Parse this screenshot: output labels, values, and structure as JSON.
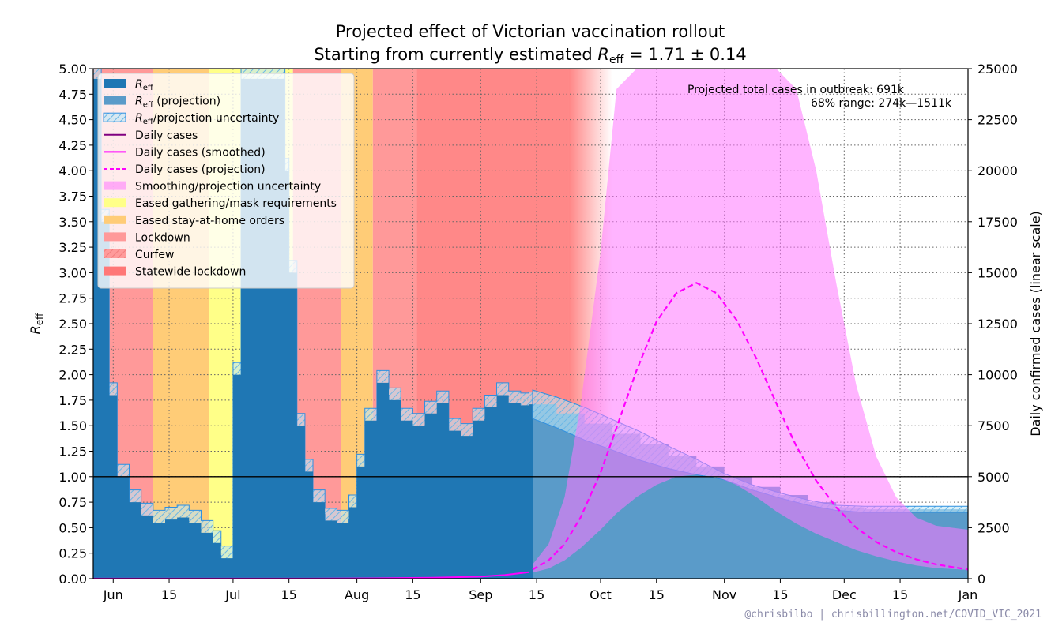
{
  "chart_data": {
    "type": "area",
    "title": "Projected effect of Victorian vaccination rollout",
    "subtitle_prefix": "Starting from currently estimated ",
    "subtitle_r": "R",
    "subtitle_r_sub": "eff",
    "subtitle_value": " = 1.71 ± 0.14",
    "ylabel_left": "R",
    "ylabel_left_sub": "eff",
    "ylabel_right": "Daily confirmed cases (linear scale)",
    "ylim_left": [
      0,
      5
    ],
    "ylim_right": [
      0,
      25000
    ],
    "xlim": [
      "2021-05-27",
      "2022-01-01"
    ],
    "grid": true,
    "legend_position": "upper-left",
    "left_ticks": [
      "0.00",
      "0.25",
      "0.50",
      "0.75",
      "1.00",
      "1.25",
      "1.50",
      "1.75",
      "2.00",
      "2.25",
      "2.50",
      "2.75",
      "3.00",
      "3.25",
      "3.50",
      "3.75",
      "4.00",
      "4.25",
      "4.50",
      "4.75",
      "5.00"
    ],
    "right_ticks": [
      "0",
      "2500",
      "5000",
      "7500",
      "10000",
      "12500",
      "15000",
      "17500",
      "20000",
      "22500",
      "25000"
    ],
    "x_ticks": [
      {
        "label": "Jun",
        "date": "2021-06-01"
      },
      {
        "label": "15",
        "date": "2021-06-15"
      },
      {
        "label": "Jul",
        "date": "2021-07-01"
      },
      {
        "label": "15",
        "date": "2021-07-15"
      },
      {
        "label": "Aug",
        "date": "2021-08-01"
      },
      {
        "label": "15",
        "date": "2021-08-15"
      },
      {
        "label": "Sep",
        "date": "2021-09-01"
      },
      {
        "label": "15",
        "date": "2021-09-15"
      },
      {
        "label": "Oct",
        "date": "2021-10-01"
      },
      {
        "label": "15",
        "date": "2021-10-15"
      },
      {
        "label": "Nov",
        "date": "2021-11-01"
      },
      {
        "label": "15",
        "date": "2021-11-15"
      },
      {
        "label": "Dec",
        "date": "2021-12-01"
      },
      {
        "label": "15",
        "date": "2021-12-15"
      },
      {
        "label": "Jan",
        "date": "2022-01-01"
      }
    ],
    "annotation_line1": "Projected total cases in outbreak:  691k",
    "annotation_line2": "68% range:  274k—1511k",
    "credit": "@chrisbilbo | chrisbillington.net/COVID_VIC_2021",
    "legend": [
      {
        "label": "R",
        "sub": "eff",
        "suffix": "",
        "style": "bar-dark"
      },
      {
        "label": "R",
        "sub": "eff",
        "suffix": " (projection)",
        "style": "bar-light"
      },
      {
        "label": "R",
        "sub": "eff",
        "suffix": "/projection uncertainty",
        "style": "hatch"
      },
      {
        "label": "Daily cases",
        "style": "line-purple"
      },
      {
        "label": "Daily cases (smoothed)",
        "style": "line-magenta"
      },
      {
        "label": "Daily cases (projection)",
        "style": "dashed-magenta"
      },
      {
        "label": "Smoothing/projection uncertainty",
        "style": "fill-pink"
      },
      {
        "label": "Eased gathering/mask requirements",
        "style": "fill-yellow"
      },
      {
        "label": "Eased stay-at-home orders",
        "style": "fill-orange"
      },
      {
        "label": "Lockdown",
        "style": "fill-red"
      },
      {
        "label": "Curfew",
        "style": "fill-curfew"
      },
      {
        "label": "Statewide lockdown",
        "style": "fill-statewide"
      }
    ],
    "restriction_periods": [
      {
        "kind": "lockdown",
        "start": "2021-05-27",
        "end": "2021-06-11"
      },
      {
        "kind": "eased_stay_home",
        "start": "2021-06-11",
        "end": "2021-06-25"
      },
      {
        "kind": "eased_gathering",
        "start": "2021-06-25",
        "end": "2021-07-16"
      },
      {
        "kind": "lockdown",
        "start": "2021-07-16",
        "end": "2021-07-28"
      },
      {
        "kind": "eased_stay_home",
        "start": "2021-07-28",
        "end": "2021-08-05"
      },
      {
        "kind": "lockdown",
        "start": "2021-08-05",
        "end": "2021-08-16"
      },
      {
        "kind": "curfew",
        "start": "2021-08-16",
        "end": "2021-09-23"
      }
    ],
    "r_eff": {
      "dates": [
        "2021-05-27",
        "2021-05-29",
        "2021-05-31",
        "2021-06-02",
        "2021-06-05",
        "2021-06-08",
        "2021-06-11",
        "2021-06-14",
        "2021-06-17",
        "2021-06-20",
        "2021-06-23",
        "2021-06-26",
        "2021-06-28",
        "2021-07-01",
        "2021-07-03",
        "2021-07-05",
        "2021-07-08",
        "2021-07-11",
        "2021-07-14",
        "2021-07-15",
        "2021-07-17",
        "2021-07-19",
        "2021-07-21",
        "2021-07-24",
        "2021-07-27",
        "2021-07-30",
        "2021-08-01",
        "2021-08-03",
        "2021-08-06",
        "2021-08-09",
        "2021-08-12",
        "2021-08-15",
        "2021-08-18",
        "2021-08-21",
        "2021-08-24",
        "2021-08-27",
        "2021-08-30",
        "2021-09-02",
        "2021-09-05",
        "2021-09-08",
        "2021-09-11",
        "2021-09-13"
      ],
      "values": [
        4.9,
        3.5,
        1.8,
        1.0,
        0.75,
        0.62,
        0.55,
        0.58,
        0.6,
        0.55,
        0.45,
        0.35,
        0.2,
        2.0,
        4.9,
        4.9,
        4.9,
        4.9,
        4.0,
        3.0,
        1.5,
        1.05,
        0.75,
        0.57,
        0.55,
        0.7,
        1.1,
        1.55,
        1.92,
        1.75,
        1.55,
        1.5,
        1.62,
        1.72,
        1.45,
        1.4,
        1.55,
        1.68,
        1.8,
        1.72,
        1.7,
        1.71
      ]
    },
    "r_projection": {
      "dates": [
        "2021-09-14",
        "2021-09-20",
        "2021-09-27",
        "2021-10-04",
        "2021-10-11",
        "2021-10-18",
        "2021-10-25",
        "2021-11-01",
        "2021-11-08",
        "2021-11-15",
        "2021-11-22",
        "2021-11-29",
        "2021-12-06",
        "2021-12-13",
        "2021-12-20",
        "2021-12-27",
        "2022-01-01"
      ],
      "values": [
        1.71,
        1.62,
        1.52,
        1.42,
        1.32,
        1.2,
        1.1,
        1.0,
        0.9,
        0.82,
        0.75,
        0.7,
        0.68,
        0.68,
        0.68,
        0.68,
        0.68
      ],
      "upper": [
        1.85,
        1.78,
        1.68,
        1.56,
        1.44,
        1.3,
        1.17,
        1.03,
        0.92,
        0.84,
        0.77,
        0.72,
        0.71,
        0.71,
        0.71,
        0.71,
        0.71
      ],
      "lower": [
        1.57,
        1.48,
        1.36,
        1.26,
        1.16,
        1.08,
        1.02,
        0.97,
        0.87,
        0.79,
        0.72,
        0.67,
        0.65,
        0.65,
        0.65,
        0.65,
        0.65
      ]
    },
    "cases_projection": {
      "dates": [
        "2021-09-14",
        "2021-09-18",
        "2021-09-22",
        "2021-09-26",
        "2021-10-01",
        "2021-10-05",
        "2021-10-10",
        "2021-10-15",
        "2021-10-20",
        "2021-10-25",
        "2021-10-30",
        "2021-11-04",
        "2021-11-09",
        "2021-11-14",
        "2021-11-19",
        "2021-11-24",
        "2021-11-29",
        "2021-12-04",
        "2021-12-09",
        "2021-12-14",
        "2021-12-19",
        "2021-12-24",
        "2022-01-01"
      ],
      "values": [
        450,
        900,
        1700,
        3000,
        5200,
        7400,
        10200,
        12600,
        14000,
        14500,
        14000,
        12700,
        10800,
        8600,
        6500,
        4800,
        3500,
        2500,
        1800,
        1300,
        950,
        700,
        450
      ],
      "upper": [
        700,
        1700,
        4000,
        8500,
        16000,
        24000,
        25000,
        25000,
        25000,
        25000,
        25000,
        25000,
        25000,
        25000,
        24000,
        20000,
        14500,
        9500,
        6000,
        4000,
        3000,
        2600,
        2400
      ],
      "lower": [
        300,
        500,
        900,
        1500,
        2400,
        3200,
        4000,
        4600,
        5000,
        5100,
        5000,
        4600,
        4000,
        3300,
        2700,
        2200,
        1800,
        1400,
        1100,
        850,
        650,
        520,
        430
      ]
    },
    "cases_observed": {
      "dates": [
        "2021-05-27",
        "2021-07-20",
        "2021-08-05",
        "2021-08-20",
        "2021-09-01",
        "2021-09-07",
        "2021-09-13"
      ],
      "values": [
        5,
        5,
        20,
        50,
        100,
        180,
        320
      ]
    },
    "colors": {
      "r_eff": "#1f77b4",
      "r_projection": "#5a9bc9",
      "uncertainty_edge": "#2f8fe0",
      "cases": "#ff00ff",
      "cases_band": "#ff77ff",
      "lockdown": "#ff9999",
      "eased_stay_home": "#ffcc77",
      "eased_gathering": "#ffff88",
      "curfew": "#ff8888",
      "statewide": "#ff7777"
    }
  }
}
